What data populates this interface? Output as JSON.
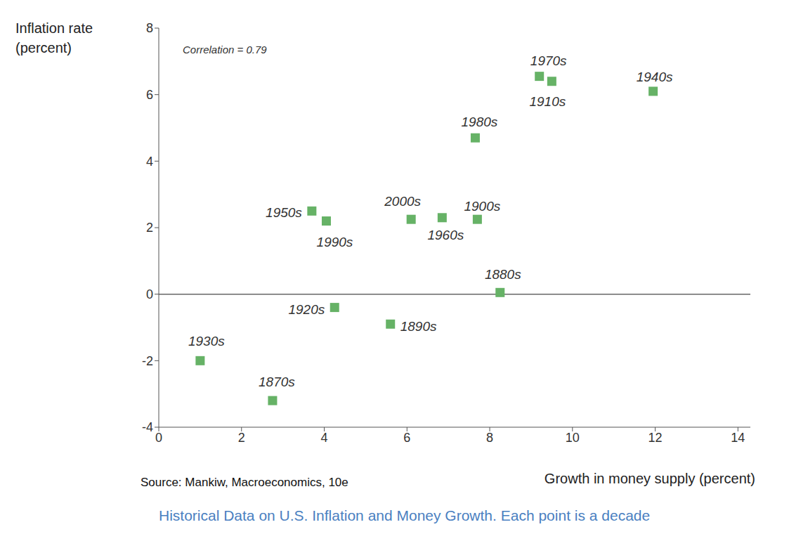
{
  "chart_data": {
    "type": "scatter",
    "caption": "Historical Data on U.S. Inflation and Money Growth. Each point is a decade",
    "source": "Source: Mankiw, Macroeconomics, 10e",
    "xlabel": "Growth in money supply (percent)",
    "ylabel": [
      "Inflation rate",
      "(percent)"
    ],
    "annotations": [
      "Correlation = 0.79"
    ],
    "labels": [
      "1870s",
      "1880s",
      "1890s",
      "1900s",
      "1910s",
      "1920s",
      "1930s",
      "1940s",
      "1950s",
      "1960s",
      "1970s",
      "1980s",
      "1990s",
      "2000s"
    ],
    "x": [
      2.75,
      8.25,
      5.6,
      7.7,
      9.5,
      4.25,
      1.0,
      11.95,
      3.7,
      6.85,
      9.2,
      7.65,
      4.05,
      6.1
    ],
    "values": [
      -3.2,
      0.05,
      -0.9,
      2.25,
      6.4,
      -0.4,
      -2.0,
      6.1,
      2.5,
      2.3,
      6.55,
      4.7,
      2.2,
      2.25
    ],
    "color": "#66b266",
    "marker": "square",
    "xlim": [
      0,
      14.3
    ],
    "xticks": [
      0,
      2,
      4,
      6,
      8,
      10,
      12,
      14
    ],
    "ylim": [
      -4,
      8
    ],
    "yticks": [
      -4,
      -2,
      0,
      2,
      4,
      6,
      8
    ],
    "grid": false
  }
}
